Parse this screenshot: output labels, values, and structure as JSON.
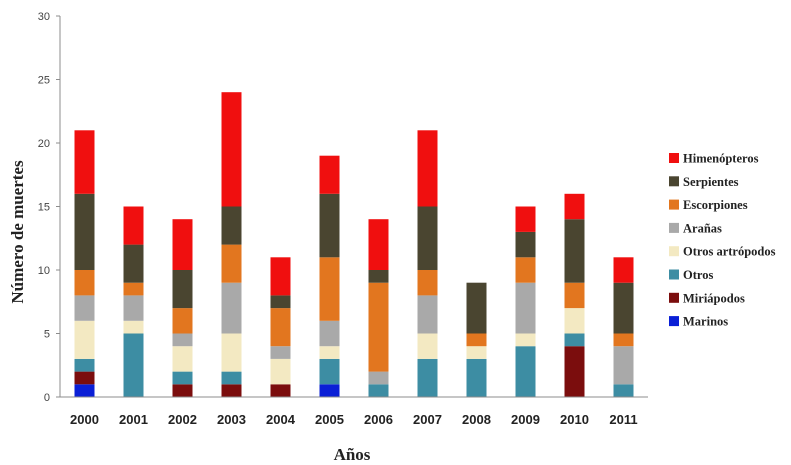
{
  "chart_data": {
    "type": "bar",
    "stacked": true,
    "title": "",
    "xlabel": "Años",
    "ylabel": "Número de muertes",
    "ylim": [
      0,
      30
    ],
    "yticks": [
      0,
      5,
      10,
      15,
      20,
      25,
      30
    ],
    "grid": false,
    "legend_position": "right",
    "categories": [
      "2000",
      "2001",
      "2002",
      "2003",
      "2004",
      "2005",
      "2006",
      "2007",
      "2008",
      "2009",
      "2010",
      "2011"
    ],
    "series": [
      {
        "name": "Marinos",
        "color": "#0a1fd6",
        "values": [
          1,
          0,
          0,
          0,
          0,
          1,
          0,
          0,
          0,
          0,
          0,
          0
        ]
      },
      {
        "name": "Miriápodos",
        "color": "#7b0d0d",
        "values": [
          1,
          0,
          1,
          1,
          1,
          0,
          0,
          0,
          0,
          0,
          4,
          0
        ]
      },
      {
        "name": "Otros",
        "color": "#3d8da3",
        "values": [
          1,
          5,
          1,
          1,
          0,
          2,
          1,
          3,
          3,
          4,
          1,
          1
        ]
      },
      {
        "name": "Otros artrópodos",
        "color": "#f3e9c2",
        "values": [
          3,
          1,
          2,
          3,
          2,
          1,
          0,
          2,
          1,
          1,
          2,
          0
        ]
      },
      {
        "name": "Arañas",
        "color": "#a9a9a9",
        "values": [
          2,
          2,
          1,
          4,
          1,
          2,
          1,
          3,
          0,
          4,
          0,
          3
        ]
      },
      {
        "name": "Escorpiones",
        "color": "#e2761f",
        "values": [
          2,
          1,
          2,
          3,
          3,
          5,
          7,
          2,
          1,
          2,
          2,
          1
        ]
      },
      {
        "name": "Serpientes",
        "color": "#4a4530",
        "values": [
          6,
          3,
          3,
          3,
          1,
          5,
          1,
          5,
          4,
          2,
          5,
          4
        ]
      },
      {
        "name": "Himenópteros",
        "color": "#f00f0f",
        "values": [
          5,
          3,
          4,
          9,
          3,
          3,
          4,
          6,
          0,
          2,
          2,
          2
        ]
      }
    ],
    "legend_order": [
      "Himenópteros",
      "Serpientes",
      "Escorpiones",
      "Arañas",
      "Otros artrópodos",
      "Otros",
      "Miriápodos",
      "Marinos"
    ]
  }
}
